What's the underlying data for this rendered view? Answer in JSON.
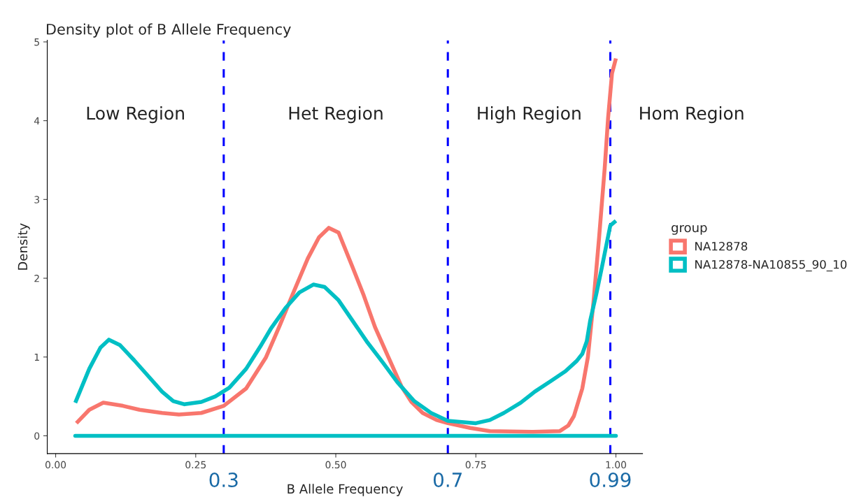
{
  "chart_data": {
    "type": "line",
    "title": "Density plot of B Allele Frequency",
    "xlabel": "B Allele Frequency",
    "ylabel": "Density",
    "legend_title": "group",
    "series": [
      {
        "name": "NA12878",
        "color": "#f8766d",
        "x": [
          0.037,
          0.06,
          0.085,
          0.12,
          0.15,
          0.19,
          0.22,
          0.26,
          0.3,
          0.34,
          0.375,
          0.4,
          0.425,
          0.45,
          0.47,
          0.4875,
          0.505,
          0.53,
          0.55,
          0.57,
          0.595,
          0.617,
          0.635,
          0.655,
          0.68,
          0.7,
          0.74,
          0.775,
          0.85,
          0.9,
          0.915,
          0.925,
          0.94,
          0.95,
          0.96,
          0.97,
          0.98,
          0.986,
          0.993,
          1.0
        ],
        "values": [
          0.16,
          0.33,
          0.42,
          0.38,
          0.33,
          0.29,
          0.27,
          0.29,
          0.38,
          0.6,
          0.99,
          1.4,
          1.83,
          2.25,
          2.52,
          2.64,
          2.58,
          2.14,
          1.78,
          1.38,
          0.98,
          0.63,
          0.43,
          0.29,
          0.2,
          0.16,
          0.1,
          0.06,
          0.05,
          0.06,
          0.13,
          0.25,
          0.6,
          1.0,
          1.7,
          2.52,
          3.4,
          4.03,
          4.6,
          4.79
        ]
      },
      {
        "name": "NA12878-NA10855_90_10",
        "color": "#00bfc4",
        "x": [
          0.035,
          0.06,
          0.08,
          0.095,
          0.115,
          0.14,
          0.16,
          0.19,
          0.21,
          0.23,
          0.26,
          0.285,
          0.31,
          0.34,
          0.365,
          0.385,
          0.41,
          0.435,
          0.46,
          0.48,
          0.505,
          0.53,
          0.555,
          0.584,
          0.61,
          0.64,
          0.67,
          0.7,
          0.75,
          0.775,
          0.8,
          0.83,
          0.855,
          0.885,
          0.91,
          0.93,
          0.94,
          0.948,
          0.954,
          0.965,
          0.975,
          0.99,
          1.0
        ],
        "values": [
          0.42,
          0.85,
          1.12,
          1.22,
          1.15,
          0.96,
          0.8,
          0.56,
          0.44,
          0.4,
          0.43,
          0.5,
          0.61,
          0.85,
          1.13,
          1.37,
          1.62,
          1.82,
          1.92,
          1.89,
          1.72,
          1.46,
          1.2,
          0.93,
          0.68,
          0.44,
          0.29,
          0.19,
          0.16,
          0.2,
          0.29,
          0.42,
          0.56,
          0.7,
          0.82,
          0.95,
          1.04,
          1.2,
          1.46,
          1.8,
          2.14,
          2.67,
          2.73
        ]
      }
    ],
    "xlim": [
      -0.015,
      1.0475
    ],
    "ylim": [
      -0.226,
      5.02
    ],
    "xticks": [
      {
        "value": 0,
        "label": "0.00"
      },
      0.25,
      {
        "value": 0.5,
        "label": "0.50"
      },
      0.75,
      {
        "value": 1,
        "label": "1.00"
      }
    ],
    "yticks": [
      0,
      1,
      2,
      3,
      4,
      5
    ],
    "grid": false,
    "legend": "right",
    "ref_lines": [
      {
        "axis": "x",
        "value": 0.3,
        "label": "0.3",
        "color": "#0000ff",
        "line_style": "dashed"
      },
      {
        "axis": "x",
        "value": 0.7,
        "label": "0.7",
        "color": "#0000ff",
        "line_style": "dashed"
      },
      {
        "axis": "x",
        "value": 0.99,
        "label": "0.99",
        "color": "#0000ff",
        "line_style": "dashed"
      },
      {
        "axis": "y",
        "value": 0,
        "color": "#00bfc4",
        "line_style": "solid"
      }
    ],
    "annotations": [
      "Low Region",
      "Het Region",
      "High Region",
      "Hom Region"
    ]
  }
}
